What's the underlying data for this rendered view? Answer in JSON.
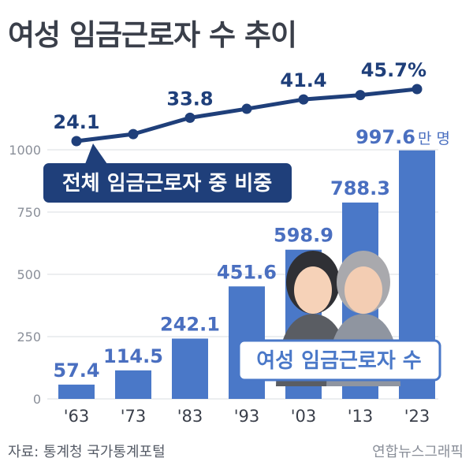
{
  "title": "여성 임금근로자 수 추이",
  "source": "자료: 통계청 국가통계포털",
  "credit": "연합뉴스그래픽",
  "colors": {
    "bar": "#4a78c8",
    "line": "#1f3f7a",
    "bar_label": "#4a6fc0",
    "line_label": "#1f3f7a",
    "badge_fill": "#1f3f7a",
    "badge_text": "#ffffff",
    "grid": "#d9dce1",
    "axis_text": "#8a8f99"
  },
  "chart_data": [
    {
      "type": "bar",
      "categories": [
        "'63",
        "'73",
        "'83",
        "'93",
        "'03",
        "'13",
        "'23"
      ],
      "values": [
        57.4,
        114.5,
        242.1,
        451.6,
        598.9,
        788.3,
        997.6
      ],
      "value_labels": [
        "57.4",
        "114.5",
        "242.1",
        "451.6",
        "598.9",
        "788.3",
        "997.6"
      ],
      "last_label_unit": "만 명",
      "ylim": [
        0,
        1000
      ],
      "yticks": [
        0,
        250,
        500,
        750,
        1000
      ],
      "grid": true,
      "series_label": "여성 임금근로자 수"
    },
    {
      "type": "line",
      "categories": [
        "'63",
        "'73",
        "'83",
        "'93",
        "'03",
        "'13",
        "'23"
      ],
      "values": [
        24.1,
        27.0,
        33.8,
        37.5,
        41.4,
        43.2,
        45.7
      ],
      "point_labels": [
        {
          "index": 0,
          "text": "24.1"
        },
        {
          "index": 2,
          "text": "33.8"
        },
        {
          "index": 4,
          "text": "41.4"
        },
        {
          "index": 6,
          "text": "45.7%"
        }
      ],
      "series_label": "전체 임금근로자 중 비중"
    }
  ]
}
